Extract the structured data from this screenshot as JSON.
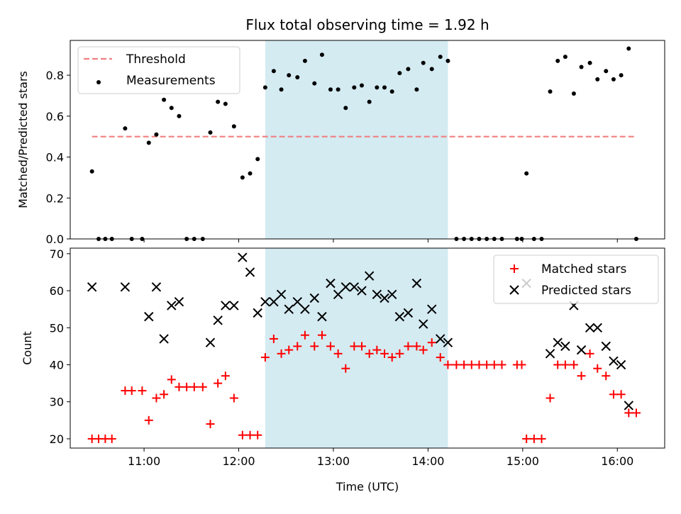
{
  "chart_data": [
    {
      "type": "scatter",
      "title": "Flux total observing time = 1.92 h",
      "xlabel": "",
      "ylabel": "Matched/Predicted stars",
      "ylim": [
        0,
        0.97
      ],
      "yticks": [
        0.0,
        0.2,
        0.4,
        0.6,
        0.8
      ],
      "ytick_labels": [
        "0.0",
        "0.2",
        "0.4",
        "0.6",
        "0.8"
      ],
      "legend_position": "top-left",
      "shaded_region": {
        "start_hour": 12.28,
        "end_hour": 14.21,
        "color": "#add8e6"
      },
      "series": [
        {
          "name": "Threshold",
          "kind": "dashed-line",
          "color": "#f08080",
          "x": [
            10.45,
            16.2
          ],
          "y": [
            0.5,
            0.5
          ]
        },
        {
          "name": "Measurements",
          "kind": "dot",
          "color": "#000000",
          "x": [
            10.45,
            10.52,
            10.59,
            10.66,
            10.8,
            10.87,
            10.98,
            11.05,
            11.13,
            11.21,
            11.29,
            11.37,
            11.45,
            11.53,
            11.62,
            11.7,
            11.78,
            11.86,
            11.95,
            12.04,
            12.12,
            12.2,
            12.28,
            12.37,
            12.45,
            12.53,
            12.62,
            12.7,
            12.8,
            12.88,
            12.97,
            13.05,
            13.13,
            13.22,
            13.3,
            13.38,
            13.46,
            13.54,
            13.62,
            13.7,
            13.79,
            13.88,
            13.95,
            14.04,
            14.13,
            14.21,
            14.3,
            14.38,
            14.46,
            14.54,
            14.62,
            14.7,
            14.78,
            14.94,
            14.99,
            15.04,
            15.12,
            15.2,
            15.29,
            15.37,
            15.45,
            15.54,
            15.62,
            15.71,
            15.79,
            15.88,
            15.96,
            16.04,
            16.12,
            16.2
          ],
          "y": [
            0.33,
            0.0,
            0.0,
            0.0,
            0.54,
            0.0,
            0.0,
            0.47,
            0.51,
            0.68,
            0.64,
            0.6,
            0.0,
            0.0,
            0.0,
            0.52,
            0.67,
            0.66,
            0.55,
            0.3,
            0.32,
            0.39,
            0.74,
            0.82,
            0.73,
            0.8,
            0.79,
            0.87,
            0.76,
            0.9,
            0.73,
            0.73,
            0.64,
            0.74,
            0.75,
            0.67,
            0.74,
            0.74,
            0.72,
            0.81,
            0.83,
            0.73,
            0.86,
            0.83,
            0.89,
            0.87,
            0.0,
            0.0,
            0.0,
            0.0,
            0.0,
            0.0,
            0.0,
            0.0,
            0.0,
            0.32,
            0.0,
            0.0,
            0.72,
            0.87,
            0.89,
            0.71,
            0.84,
            0.86,
            0.78,
            0.82,
            0.78,
            0.8,
            0.93,
            0.0
          ]
        }
      ]
    },
    {
      "type": "scatter",
      "title": "",
      "xlabel": "Time (UTC)",
      "ylabel": "Count",
      "xlim": [
        10.22,
        16.5
      ],
      "ylim": [
        17.5,
        71.5
      ],
      "xticks": [
        11,
        12,
        13,
        14,
        15,
        16
      ],
      "xtick_labels": [
        "11:00",
        "12:00",
        "13:00",
        "14:00",
        "15:00",
        "16:00"
      ],
      "yticks": [
        20,
        30,
        40,
        50,
        60,
        70
      ],
      "ytick_labels": [
        "20",
        "30",
        "40",
        "50",
        "60",
        "70"
      ],
      "legend_position": "top-right",
      "shaded_region": {
        "start_hour": 12.28,
        "end_hour": 14.21,
        "color": "#add8e6"
      },
      "series": [
        {
          "name": "Matched stars",
          "kind": "plus",
          "color": "#ff0000",
          "x": [
            10.45,
            10.52,
            10.59,
            10.66,
            10.8,
            10.87,
            10.98,
            11.05,
            11.13,
            11.21,
            11.29,
            11.37,
            11.45,
            11.53,
            11.62,
            11.7,
            11.78,
            11.86,
            11.95,
            12.04,
            12.12,
            12.2,
            12.28,
            12.37,
            12.45,
            12.53,
            12.62,
            12.7,
            12.8,
            12.88,
            12.97,
            13.05,
            13.13,
            13.22,
            13.3,
            13.38,
            13.46,
            13.54,
            13.62,
            13.7,
            13.79,
            13.88,
            13.95,
            14.04,
            14.13,
            14.21,
            14.3,
            14.38,
            14.46,
            14.54,
            14.62,
            14.7,
            14.78,
            14.94,
            14.99,
            15.04,
            15.12,
            15.2,
            15.29,
            15.37,
            15.45,
            15.54,
            15.62,
            15.71,
            15.79,
            15.88,
            15.96,
            16.04,
            16.12,
            16.2
          ],
          "y": [
            20,
            20,
            20,
            20,
            33,
            33,
            33,
            25,
            31,
            32,
            36,
            34,
            34,
            34,
            34,
            24,
            35,
            37,
            31,
            21,
            21,
            21,
            42,
            47,
            43,
            44,
            45,
            48,
            45,
            48,
            45,
            43,
            39,
            45,
            45,
            43,
            44,
            43,
            42,
            43,
            45,
            45,
            44,
            46,
            42,
            40,
            40,
            40,
            40,
            40,
            40,
            40,
            40,
            40,
            40,
            20,
            20,
            20,
            31,
            40,
            40,
            40,
            37,
            43,
            39,
            37,
            32,
            32,
            27,
            27
          ]
        },
        {
          "name": "Predicted stars",
          "kind": "x",
          "color": "#000000",
          "x": [
            10.45,
            10.8,
            11.05,
            11.13,
            11.21,
            11.29,
            11.37,
            11.7,
            11.78,
            11.86,
            11.95,
            12.04,
            12.12,
            12.2,
            12.28,
            12.37,
            12.45,
            12.53,
            12.62,
            12.7,
            12.8,
            12.88,
            12.97,
            13.05,
            13.13,
            13.22,
            13.3,
            13.38,
            13.46,
            13.54,
            13.62,
            13.7,
            13.79,
            13.88,
            13.95,
            14.04,
            14.13,
            14.21,
            15.04,
            15.29,
            15.37,
            15.45,
            15.54,
            15.62,
            15.71,
            15.79,
            15.88,
            15.96,
            16.04,
            16.12
          ],
          "y": [
            61,
            61,
            53,
            61,
            47,
            56,
            57,
            46,
            52,
            56,
            56,
            69,
            65,
            54,
            57,
            57,
            59,
            55,
            57,
            55,
            58,
            53,
            62,
            59,
            61,
            61,
            60,
            64,
            59,
            58,
            59,
            53,
            54,
            62,
            51,
            55,
            47,
            46,
            62,
            43,
            46,
            45,
            56,
            44,
            50,
            50,
            45,
            41,
            40,
            29
          ]
        }
      ]
    }
  ]
}
